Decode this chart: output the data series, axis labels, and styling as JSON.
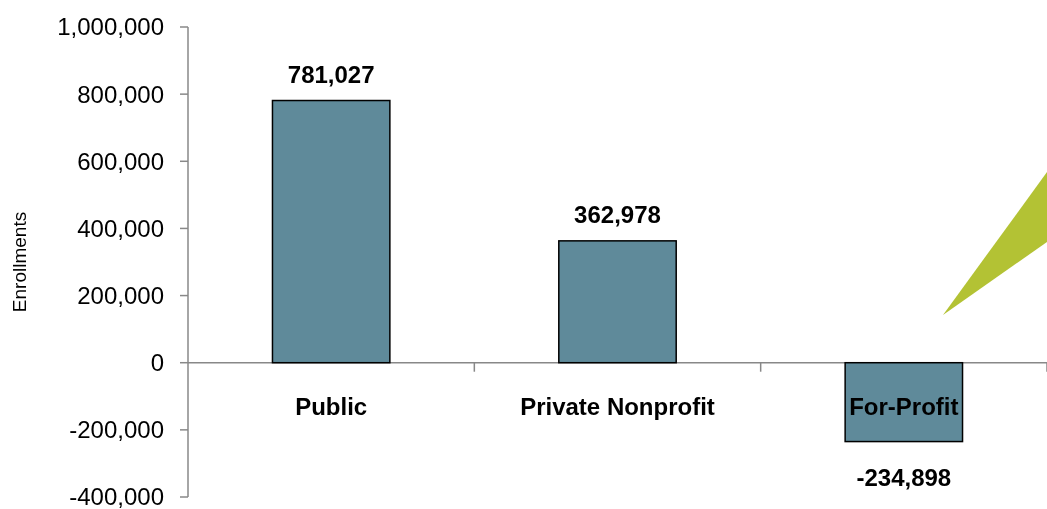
{
  "chart_data": {
    "type": "bar",
    "ylabel": "Enrollments",
    "categories": [
      "Public",
      "Private Nonprofit",
      "For-Profit"
    ],
    "values": [
      781027,
      362978,
      -234898
    ],
    "color": "#5f8a9a",
    "ylim": [
      -400000,
      1000000
    ],
    "yticks": [
      {
        "value": -400000,
        "label": "-400,000"
      },
      {
        "value": -200000,
        "label": "-200,000"
      },
      0,
      {
        "value": 200000,
        "label": "200,000"
      },
      {
        "value": 400000,
        "label": "400,000"
      },
      {
        "value": 600000,
        "label": "600,000"
      },
      {
        "value": 800000,
        "label": "800,000"
      },
      {
        "value": 1000000,
        "label": "1,000,000"
      }
    ],
    "value_labels": [
      "781,027",
      "362,978",
      "-234,898"
    ]
  }
}
